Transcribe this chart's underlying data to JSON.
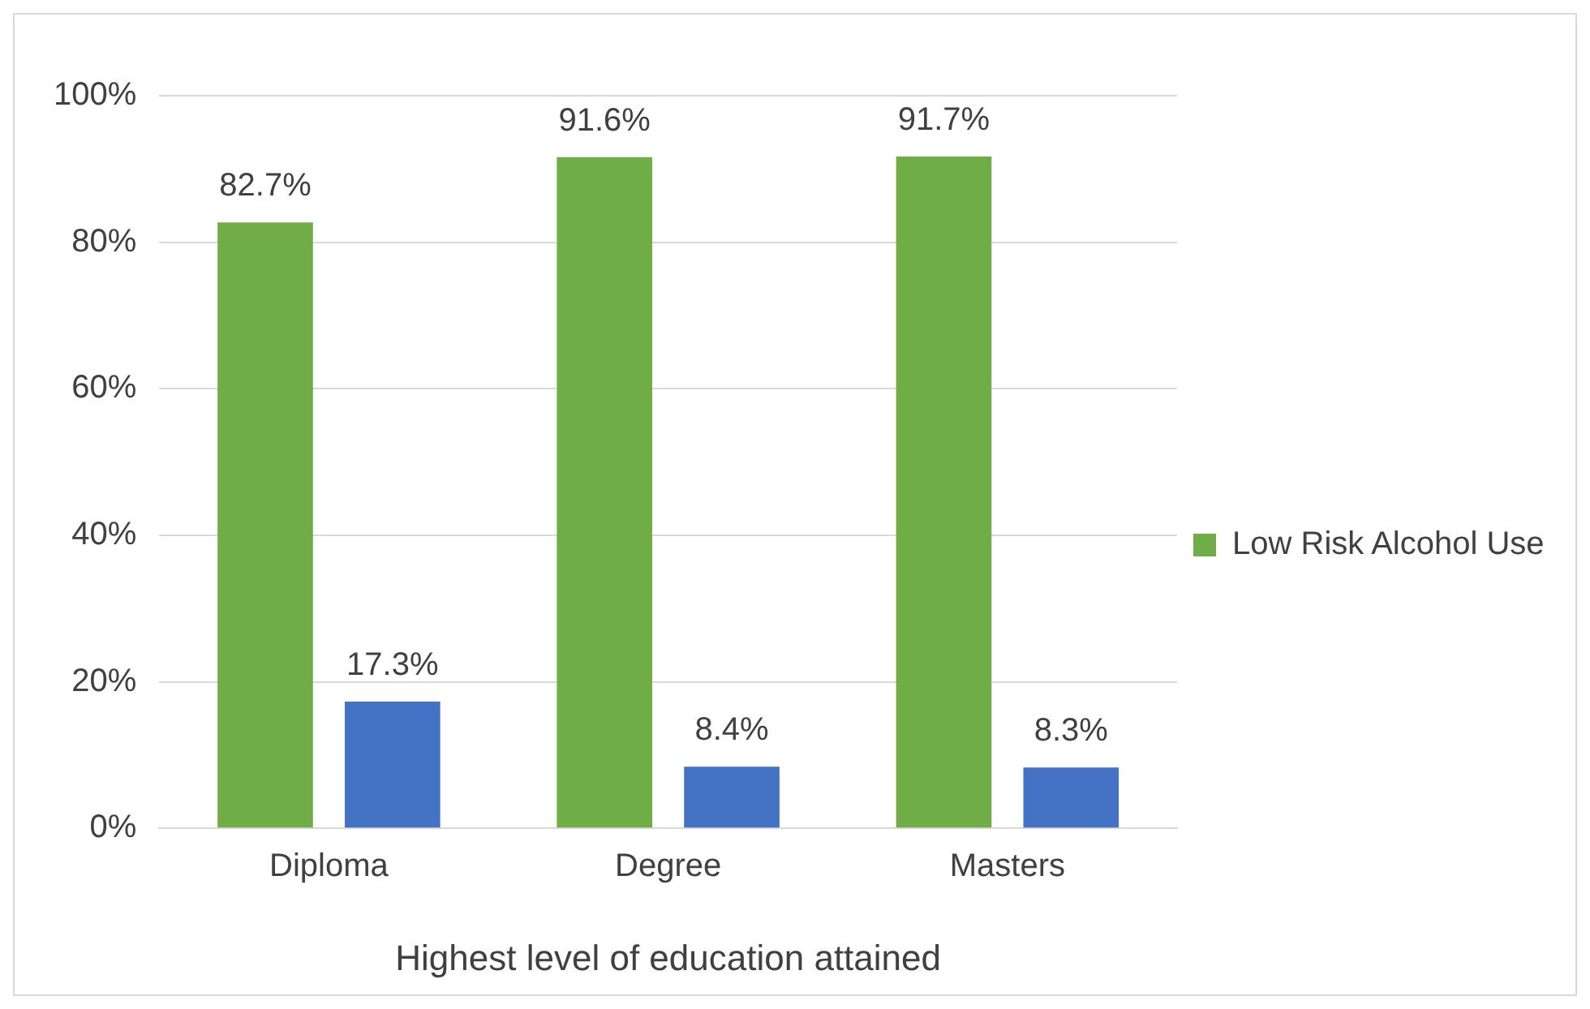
{
  "chart_data": {
    "type": "bar",
    "xlabel": "Highest level of education attained",
    "categories": [
      "Diploma",
      "Degree",
      "Masters"
    ],
    "series": [
      {
        "name": "Low Risk Alcohol Use",
        "color": "#70ad47",
        "values": [
          82.7,
          91.6,
          91.7
        ],
        "value_labels": [
          "82.7%",
          "91.6%",
          "91.7%"
        ]
      },
      {
        "color": "#4472c4",
        "values": [
          17.3,
          8.4,
          8.3
        ],
        "value_labels": [
          "17.3%",
          "8.4%",
          "8.3%"
        ]
      }
    ],
    "ylim": [
      0,
      100
    ],
    "yticks": [
      {
        "value": 0,
        "label": "0%"
      },
      {
        "value": 20,
        "label": "20%"
      },
      {
        "value": 40,
        "label": "40%"
      },
      {
        "value": 60,
        "label": "60%"
      },
      {
        "value": 80,
        "label": "80%"
      },
      {
        "value": 100,
        "label": "100%"
      }
    ],
    "grid": "y",
    "legend": "right"
  }
}
